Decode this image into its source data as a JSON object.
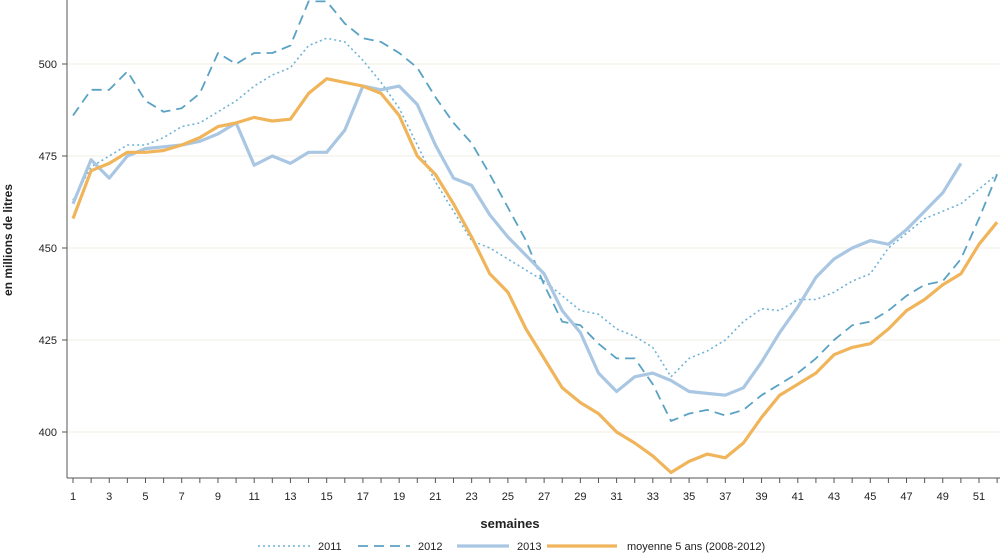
{
  "chart_data": {
    "type": "line",
    "title": "",
    "xlabel": "semaines",
    "ylabel": "en millions de litres",
    "xlim": [
      1,
      52
    ],
    "ylim": [
      387.5,
      517.5
    ],
    "yticks": [
      400,
      425,
      450,
      475,
      500
    ],
    "xticks": [
      1,
      3,
      5,
      7,
      9,
      11,
      13,
      15,
      17,
      19,
      21,
      23,
      25,
      27,
      29,
      31,
      33,
      35,
      37,
      39,
      41,
      43,
      45,
      47,
      49,
      51
    ],
    "grid": "horizontal",
    "legend_position": "bottom",
    "series": [
      {
        "name": "2011",
        "style": "dotted",
        "color": "#6fb3d6",
        "values": [
          463,
          472,
          475,
          478,
          478,
          480,
          483,
          484,
          487,
          490,
          494,
          497,
          499,
          505,
          507,
          506,
          501,
          495,
          488,
          478,
          468,
          460,
          452,
          450,
          447,
          444,
          441,
          437,
          433,
          432,
          428,
          426,
          423,
          415,
          420,
          422,
          425,
          430,
          433.5,
          433,
          436,
          436,
          438,
          441,
          443,
          450,
          454,
          458,
          460,
          462,
          466,
          470
        ]
      },
      {
        "name": "2012",
        "style": "dashed",
        "color": "#5aa2c4",
        "values": [
          486,
          493,
          493,
          498,
          490,
          487,
          488,
          492,
          503,
          500,
          503,
          503,
          505,
          517,
          517,
          511,
          507,
          506,
          503,
          499,
          491,
          484,
          478.5,
          470,
          461,
          452,
          440,
          430,
          429,
          424,
          420,
          420,
          413,
          403,
          405,
          406,
          404.5,
          406,
          410,
          413,
          416,
          420,
          425,
          429,
          430,
          433,
          437,
          440,
          441,
          447,
          458,
          470
        ]
      },
      {
        "name": "2013",
        "style": "solid",
        "color": "#a9c7e3",
        "values": [
          462,
          474,
          469,
          475,
          477,
          477.5,
          478,
          479,
          481,
          484,
          472.5,
          475,
          473,
          476,
          476,
          482,
          494,
          493,
          494,
          489,
          478,
          469,
          467,
          459,
          453,
          448,
          443,
          433,
          427,
          416,
          411,
          415,
          416,
          414,
          411,
          410.5,
          410,
          412,
          419,
          427,
          434,
          442,
          447,
          450,
          452,
          451,
          455,
          460,
          465,
          473
        ]
      },
      {
        "name": "moyenne 5 ans (2008-2012)",
        "style": "solid",
        "color": "#f0b55a",
        "values": [
          458,
          471,
          473,
          476,
          476,
          476.5,
          478,
          480,
          483,
          484,
          485.5,
          484.5,
          485,
          492,
          496,
          495,
          494,
          492,
          486,
          475,
          470,
          462,
          453,
          443,
          438,
          428,
          420,
          412,
          408,
          405,
          400,
          397,
          393.5,
          389,
          392,
          394,
          393,
          397,
          404,
          410,
          413,
          416,
          421,
          423,
          424,
          428,
          433,
          436,
          440,
          443,
          451,
          457
        ]
      }
    ]
  }
}
